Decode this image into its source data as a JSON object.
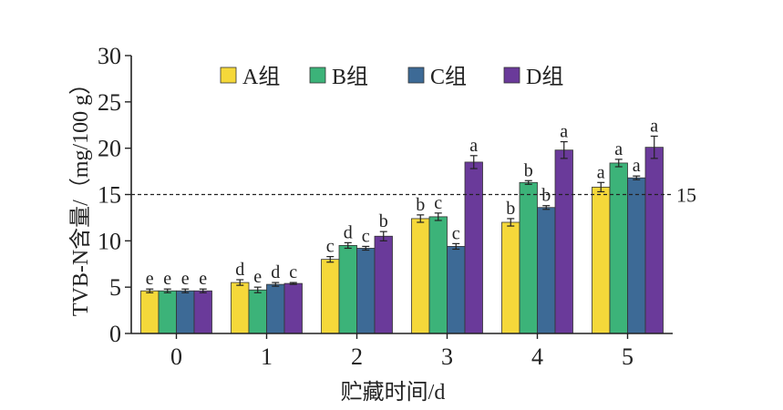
{
  "chart_data": {
    "type": "bar",
    "xlabel": "贮藏时间/d",
    "ylabel": "TVB-N含量/（mg/100 g）",
    "ylim": [
      0,
      30
    ],
    "yticks": [
      "0",
      "5",
      "10",
      "15",
      "20",
      "25",
      "30"
    ],
    "categories": [
      "0",
      "1",
      "2",
      "3",
      "4",
      "5"
    ],
    "legend": "top",
    "reference_line": {
      "value": 15,
      "label": "15"
    },
    "series": [
      {
        "name": "A组",
        "color": "#f5d83a",
        "values": [
          4.6,
          5.5,
          8.0,
          12.4,
          12.0,
          15.8
        ],
        "errors": [
          0.2,
          0.3,
          0.3,
          0.4,
          0.4,
          0.5
        ],
        "letters": [
          "e",
          "d",
          "c",
          "b",
          "b",
          "a"
        ]
      },
      {
        "name": "B组",
        "color": "#3cb379",
        "values": [
          4.6,
          4.7,
          9.5,
          12.6,
          16.3,
          18.4
        ],
        "errors": [
          0.2,
          0.3,
          0.3,
          0.4,
          0.2,
          0.4
        ],
        "letters": [
          "e",
          "e",
          "d",
          "c",
          "b",
          "a"
        ]
      },
      {
        "name": "C组",
        "color": "#3d6a96",
        "values": [
          4.6,
          5.3,
          9.2,
          9.4,
          13.6,
          16.8
        ],
        "errors": [
          0.2,
          0.2,
          0.2,
          0.3,
          0.2,
          0.2
        ],
        "letters": [
          "e",
          "d",
          "c",
          "c",
          "b",
          "a"
        ]
      },
      {
        "name": "D组",
        "color": "#6a3a9a",
        "values": [
          4.6,
          5.4,
          10.5,
          18.5,
          19.8,
          20.1
        ],
        "errors": [
          0.2,
          0.1,
          0.5,
          0.7,
          0.9,
          1.2
        ],
        "letters": [
          "e",
          "c",
          "b",
          "a",
          "a",
          "a"
        ]
      }
    ]
  }
}
